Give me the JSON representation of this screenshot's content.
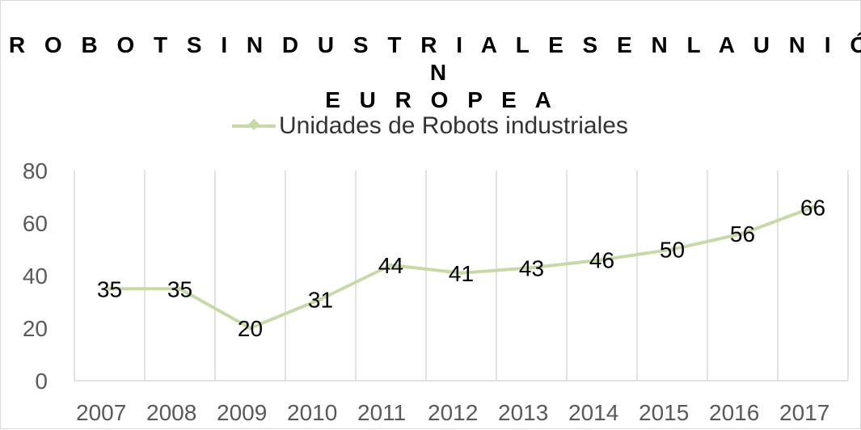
{
  "chart_data": {
    "type": "line",
    "title_lines": [
      "R O B O T S I N D U S T R I A L E S  E N L A U N I Ó N",
      "E U R O P E A"
    ],
    "categories": [
      "2007",
      "2008",
      "2009",
      "2010",
      "2011",
      "2012",
      "2013",
      "2014",
      "2015",
      "2016",
      "2017"
    ],
    "series": [
      {
        "name": "Unidades de Robots industriales",
        "values": [
          35,
          35,
          20,
          31,
          44,
          41,
          43,
          46,
          50,
          56,
          66
        ],
        "color": "#c6d9a7"
      }
    ],
    "yticks": [
      "0",
      "20",
      "40",
      "60",
      "80"
    ],
    "ylim": [
      0,
      80
    ],
    "grid": true,
    "legend_position": "top"
  }
}
